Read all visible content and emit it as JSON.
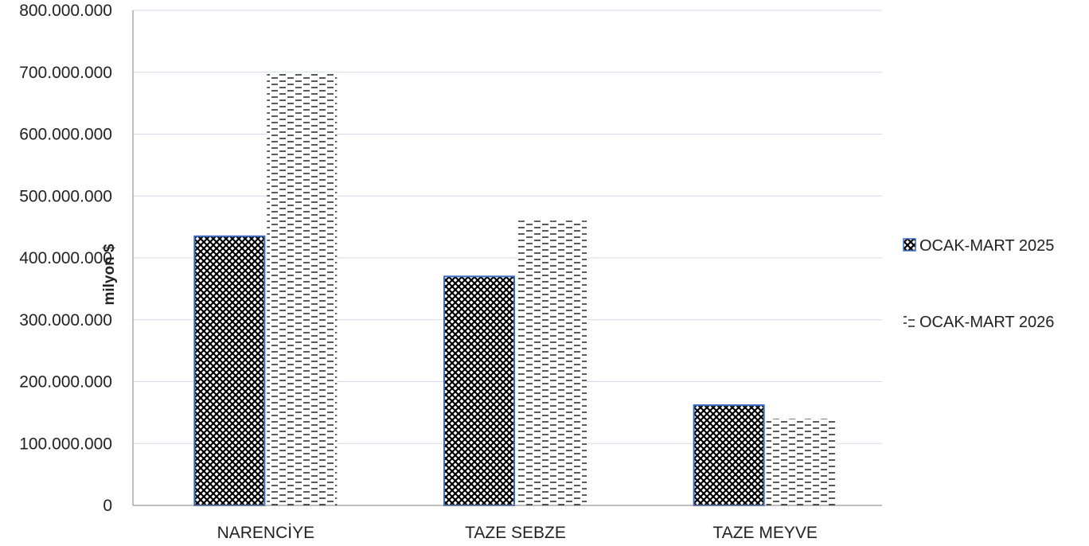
{
  "chart_data": {
    "type": "bar",
    "title": "",
    "xlabel": "",
    "ylabel": "milyon $",
    "categories": [
      "NARENCİYE",
      "TAZE SEBZE",
      "TAZE MEYVE"
    ],
    "series": [
      {
        "name": "OCAK-MART 2025",
        "values": [
          435000000,
          370000000,
          162000000
        ],
        "pattern": "checker"
      },
      {
        "name": "OCAK-MART 2026",
        "values": [
          700000000,
          460000000,
          140000000
        ],
        "pattern": "dashes"
      }
    ],
    "ylim": [
      0,
      800000000
    ],
    "yticks": [
      0,
      100000000,
      200000000,
      300000000,
      400000000,
      500000000,
      600000000,
      700000000,
      800000000
    ],
    "ytick_labels": [
      "0",
      "100.000.000",
      "200.000.000",
      "300.000.000",
      "400.000.000",
      "500.000.000",
      "600.000.000",
      "700.000.000",
      "800.000.000"
    ],
    "grid": true,
    "legend_position": "right",
    "colors": {
      "grid": "#d0dcec",
      "bar_outline_2025": "#3b6cc4",
      "pattern_dark": "#000000",
      "axis": "#7f7f7f"
    }
  }
}
